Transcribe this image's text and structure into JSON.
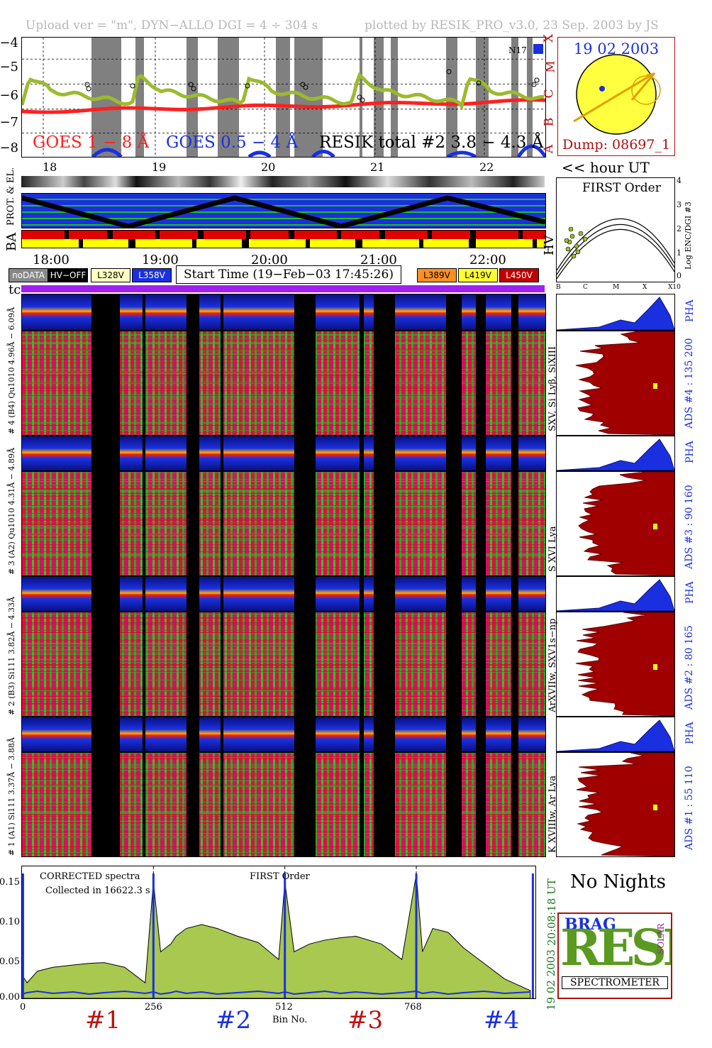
{
  "header": {
    "left": "Upload ver = \"m\", DYN−ALLO DGI =   4 ÷ 304 s",
    "right": "plotted by RESIK_PRO_v3.0, 23 Sep. 2003 by JS"
  },
  "goes": {
    "y_ticks": [
      "−4",
      "−5",
      "−6",
      "−7",
      "−8"
    ],
    "class_letters": [
      "X",
      "M",
      "C",
      "B",
      "A"
    ],
    "label_1_8": "GOES 1 − 8 Å",
    "label_05_4": "GOES 0.5 − 4 Å",
    "label_resik": "RESIK total #2  3.8 − 4.3 Å",
    "n17": "N17",
    "colors": {
      "goes_long": "#ff2020",
      "goes_short": "#1a30e0",
      "resik": "#9cba2e",
      "night": "#808080"
    }
  },
  "sun_panel": {
    "date": "19 02 2003",
    "dump": "Dump: 08697_1"
  },
  "hour_axis": {
    "top_ticks": [
      "18",
      "19",
      "20",
      "21",
      "22"
    ],
    "ut_label": "<< hour UT",
    "mid_ticks": [
      "18:00",
      "19:00",
      "20:00",
      "21:00",
      "22:00"
    ]
  },
  "strip_labels": {
    "prot": "PROT. & EL.",
    "ba": "BA",
    "hv": "HV",
    "tc": "tc"
  },
  "first_order_inset": {
    "title": "FIRST Order",
    "ylabel": "Log ENC/DGI #3",
    "y_ticks": [
      "4",
      "3",
      "2",
      "1",
      "0"
    ],
    "x_ticks": [
      "B",
      "C",
      "M",
      "X",
      "X10"
    ]
  },
  "legend_pills": {
    "nodata": "noDATA",
    "hvoff": "HV−OFF",
    "l328": "L328V",
    "l358": "L358V",
    "l389": "L389V",
    "l419": "L419V",
    "l450": "L450V"
  },
  "start_time": "Start Time (19−Feb−03 17:45:26)",
  "channels": [
    {
      "pha_label": "4.96Å − 6.09Å",
      "label": "# 4 (B4) Qu1010 4.96Å − 6.09Å",
      "lines": "SXV, Si Lyβ, SiXIII",
      "ads": "ADS #4 :  135 200"
    },
    {
      "pha_label": "4.31Å − 4.89Å",
      "label": "# 3 (A2) Qu1010  4.31Å − 4.89Å",
      "lines": "S XVI Lya",
      "ads": "ADS #3 :   90 160"
    },
    {
      "pha_label": "3.82Å − 4.33Å",
      "label": "# 2 (B3) Si111  3.82Å − 4.33Å",
      "lines": "ArXVIIw, SXV1s−np",
      "ads": "ADS #2 :   80 165"
    },
    {
      "pha_label": "3.37Å − 3.88Å",
      "label": "# 1 (A1) Si111  3.37Å − 3.88Å",
      "lines": "K XVIIIw, Ar Lya",
      "ads": "ADS #1 :   55 110"
    }
  ],
  "pha": "PHA",
  "bottom": {
    "title1": "CORRECTED spectra",
    "title2": "Collected in 16622.3 s",
    "first_order": "FIRST Order",
    "y_ticks": [
      "0.15",
      "0.10",
      "0.05",
      "0.00"
    ],
    "x_ticks": [
      "0",
      "256",
      "512",
      "768"
    ],
    "xlabel": "Bin No.",
    "side_time": "20:08:18 UT",
    "side_date": "19 02 2003",
    "section_labels": [
      "#1",
      "#2",
      "#3",
      "#4"
    ]
  },
  "no_nights": "No Nights",
  "logo": {
    "big": "RESIK",
    "sub": "SPECTROMETER",
    "brag": "BRAG",
    "solar": "SOLAR"
  },
  "chart_data": {
    "type": "line",
    "title": "",
    "xlabel": "Bin No.",
    "ylabel": "",
    "xlim": [
      0,
      1000
    ],
    "ylim": [
      0,
      0.17
    ],
    "series": [
      {
        "name": "CORRECTED spectra",
        "x": [
          0,
          10,
          30,
          60,
          100,
          130,
          160,
          200,
          240,
          256,
          270,
          290,
          300,
          320,
          350,
          380,
          420,
          460,
          500,
          512,
          530,
          560,
          590,
          620,
          650,
          700,
          740,
          768,
          780,
          800,
          830,
          860,
          900,
          940,
          990
        ],
        "y": [
          0.03,
          0.02,
          0.035,
          0.04,
          0.043,
          0.045,
          0.046,
          0.04,
          0.02,
          0.15,
          0.06,
          0.07,
          0.08,
          0.09,
          0.095,
          0.09,
          0.08,
          0.072,
          0.05,
          0.15,
          0.06,
          0.07,
          0.075,
          0.078,
          0.08,
          0.07,
          0.05,
          0.16,
          0.06,
          0.09,
          0.085,
          0.065,
          0.045,
          0.025,
          0.01
        ]
      }
    ]
  }
}
